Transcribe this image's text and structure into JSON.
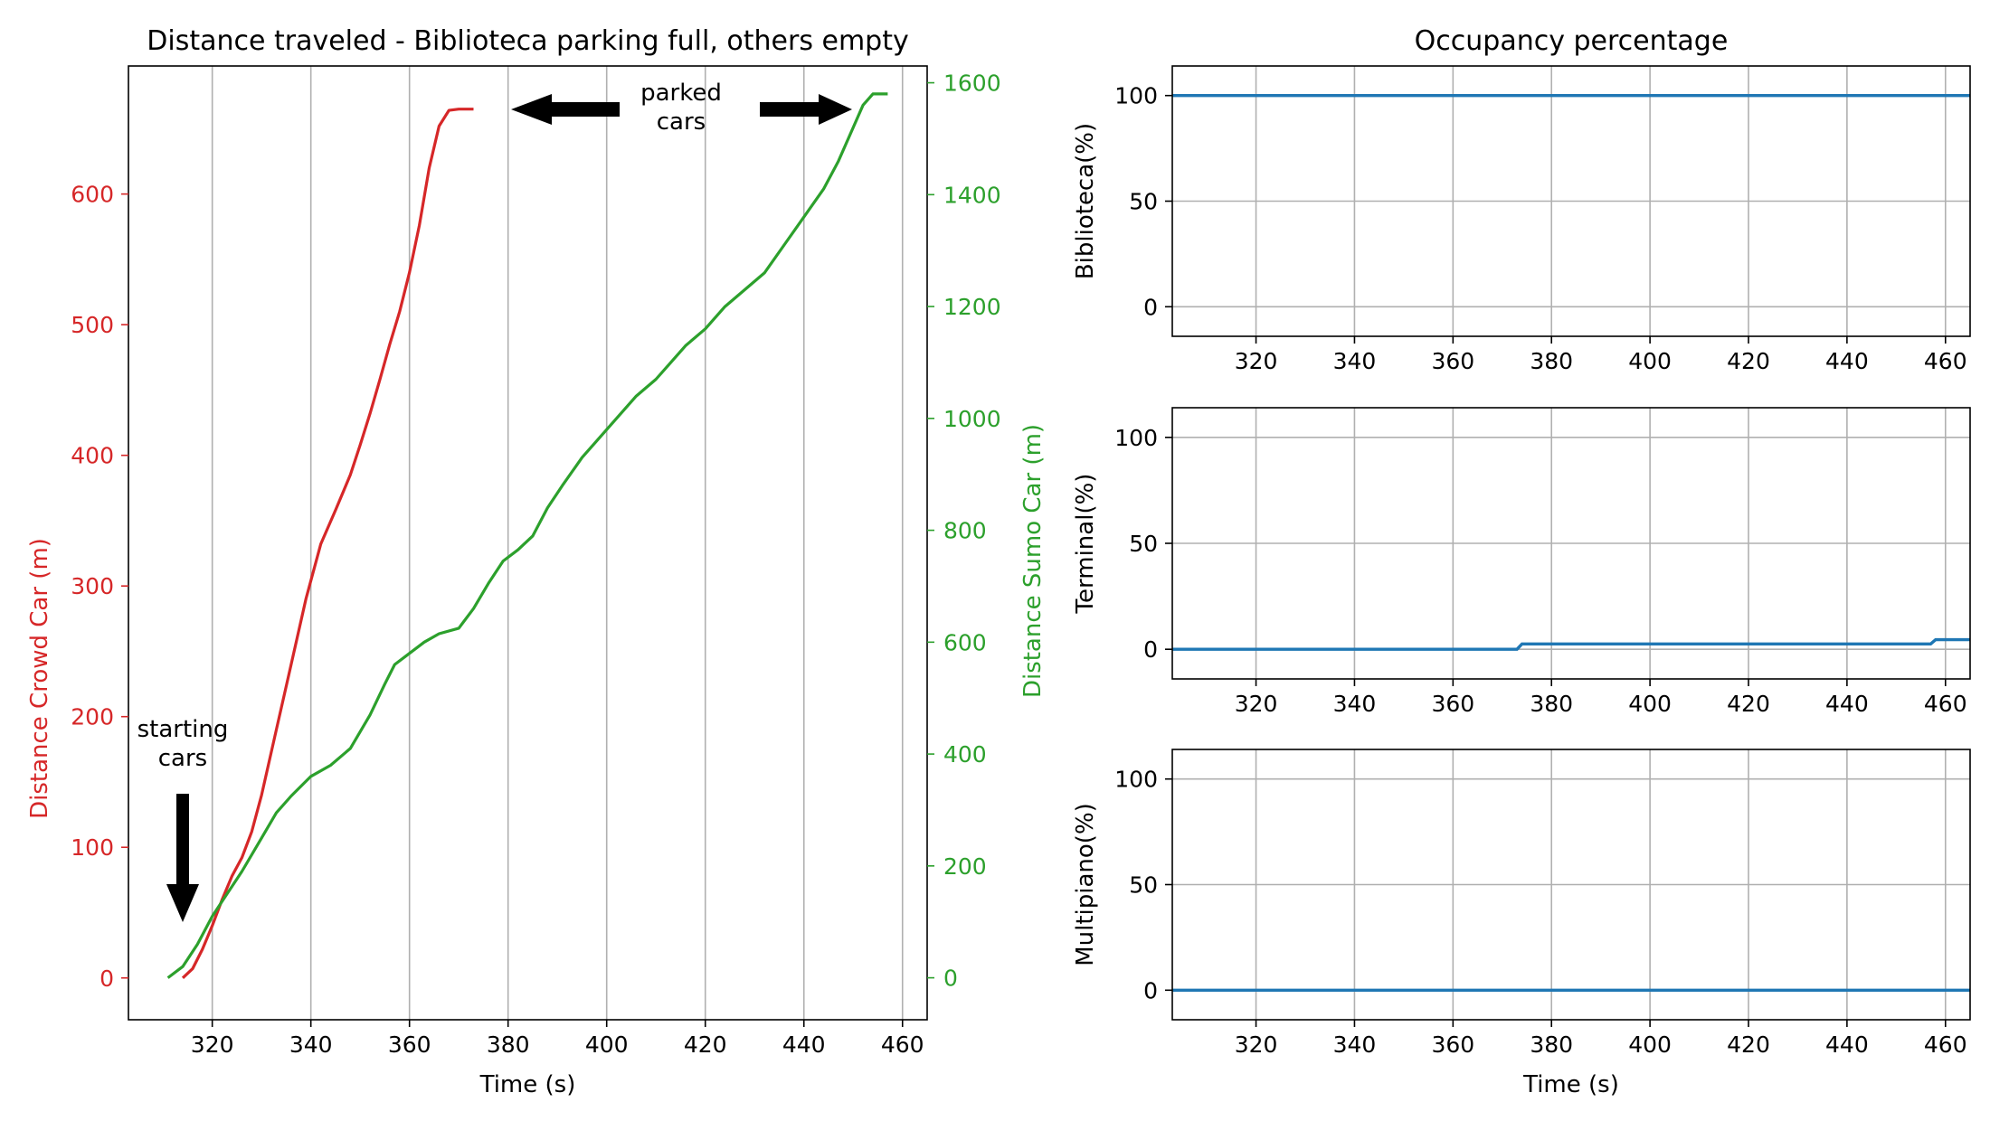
{
  "chart_data": [
    {
      "type": "line",
      "title": "Distance traveled - Biblioteca parking full, others empty",
      "xlabel": "Time (s)",
      "ylabel_left": "Distance Crowd Car (m)",
      "ylabel_right": "Distance Sumo Car (m)",
      "xlim": [
        303,
        465
      ],
      "ylim_left": [
        -32,
        698
      ],
      "ylim_right": [
        -75,
        1630
      ],
      "xticks": [
        320,
        340,
        360,
        380,
        400,
        420,
        440,
        460
      ],
      "yticks_left": [
        0,
        100,
        200,
        300,
        400,
        500,
        600
      ],
      "yticks_right": [
        0,
        200,
        400,
        600,
        800,
        1000,
        1200,
        1400,
        1600
      ],
      "grid": "x-only",
      "colors": {
        "crowd": "#d62728",
        "sumo": "#2ca02c"
      },
      "series": [
        {
          "name": "Distance Crowd Car (m)",
          "axis": "left",
          "x": [
            314,
            316,
            318,
            320,
            322,
            324,
            326,
            328,
            330,
            333,
            336,
            339,
            342,
            345,
            348,
            350,
            352,
            354,
            356,
            358,
            360,
            362,
            364,
            366,
            368,
            370,
            373
          ],
          "y": [
            0,
            7,
            22,
            40,
            60,
            78,
            92,
            112,
            140,
            190,
            240,
            290,
            332,
            358,
            385,
            408,
            432,
            458,
            485,
            510,
            540,
            576,
            620,
            652,
            664,
            665,
            665
          ]
        },
        {
          "name": "Distance Sumo Car (m)",
          "axis": "right",
          "x": [
            311,
            314,
            317,
            320,
            323,
            326,
            330,
            333,
            336,
            340,
            344,
            348,
            352,
            355,
            357,
            360,
            363,
            366,
            370,
            373,
            376,
            379,
            382,
            385,
            388,
            391,
            395,
            398,
            402,
            406,
            410,
            413,
            416,
            420,
            424,
            428,
            432,
            436,
            440,
            444,
            447,
            450,
            452,
            454,
            457
          ],
          "y": [
            0,
            20,
            60,
            110,
            150,
            190,
            250,
            295,
            325,
            360,
            380,
            410,
            470,
            525,
            560,
            580,
            600,
            615,
            625,
            660,
            705,
            745,
            765,
            790,
            840,
            880,
            930,
            960,
            1000,
            1040,
            1070,
            1100,
            1130,
            1160,
            1200,
            1230,
            1260,
            1310,
            1360,
            1410,
            1460,
            1520,
            1560,
            1580,
            1580
          ]
        }
      ],
      "annotations": [
        {
          "text": [
            "starting",
            "cars"
          ]
        },
        {
          "text": [
            "parked",
            "cars"
          ]
        }
      ]
    },
    {
      "type": "line",
      "title": "Occupancy percentage",
      "xlabel": "Time (s)",
      "xlim": [
        303,
        465
      ],
      "xticks": [
        320,
        340,
        360,
        380,
        400,
        420,
        440,
        460
      ],
      "yticks": [
        0,
        50,
        100
      ],
      "ylim": [
        -14,
        114
      ],
      "grid": "both",
      "color": "#1f77b4",
      "subplots": [
        {
          "ylabel": "Biblioteca(%)",
          "x": [
            303,
            465
          ],
          "y": [
            100,
            100
          ]
        },
        {
          "ylabel": "Terminal(%)",
          "x": [
            303,
            373,
            374,
            457,
            458,
            465
          ],
          "y": [
            0,
            0,
            2.5,
            2.5,
            4.5,
            4.5
          ]
        },
        {
          "ylabel": "Multipiano(%)",
          "x": [
            303,
            465
          ],
          "y": [
            0,
            0
          ]
        }
      ]
    }
  ]
}
